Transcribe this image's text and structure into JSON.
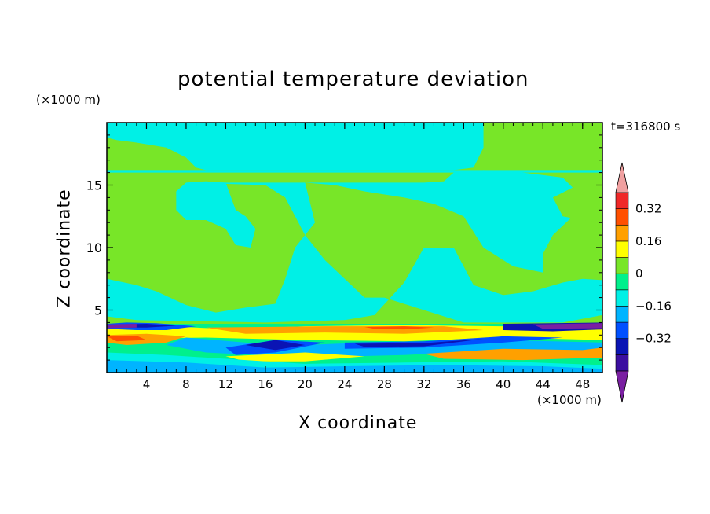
{
  "chart_data": {
    "type": "heatmap",
    "title": "potential temperature deviation",
    "xlabel": "X coordinate",
    "ylabel": "Z coordinate",
    "x_units": "(×1000 m)",
    "y_units": "(×1000 m)",
    "timestamp": "t=316800 s",
    "xlim": [
      0,
      50
    ],
    "ylim": [
      0,
      20
    ],
    "x_ticks": [
      "4",
      "8",
      "12",
      "16",
      "20",
      "24",
      "28",
      "32",
      "36",
      "40",
      "44",
      "48"
    ],
    "y_ticks": [
      "5",
      "10",
      "15"
    ],
    "colorbar": {
      "levels": [
        -0.48,
        -0.4,
        -0.32,
        -0.24,
        -0.16,
        -0.08,
        0,
        0.08,
        0.16,
        0.24,
        0.32,
        0.4
      ],
      "colors": [
        "#7a1fa2",
        "#3b0fa0",
        "#0a14b4",
        "#0050ff",
        "#00b4ff",
        "#00f0e6",
        "#00f08c",
        "#78e628",
        "#ffff00",
        "#ffa000",
        "#ff5000",
        "#f02828",
        "#f0a0a0"
      ],
      "tick_labels": [
        "0.32",
        "0.16",
        "0",
        "−0.16",
        "−0.32"
      ],
      "extend": "both"
    },
    "field_description_values": {
      "upper_region_dominant": 0,
      "upper_region_patches": -0.05,
      "boundary_layer_range": [
        -0.4,
        0.32
      ]
    }
  }
}
